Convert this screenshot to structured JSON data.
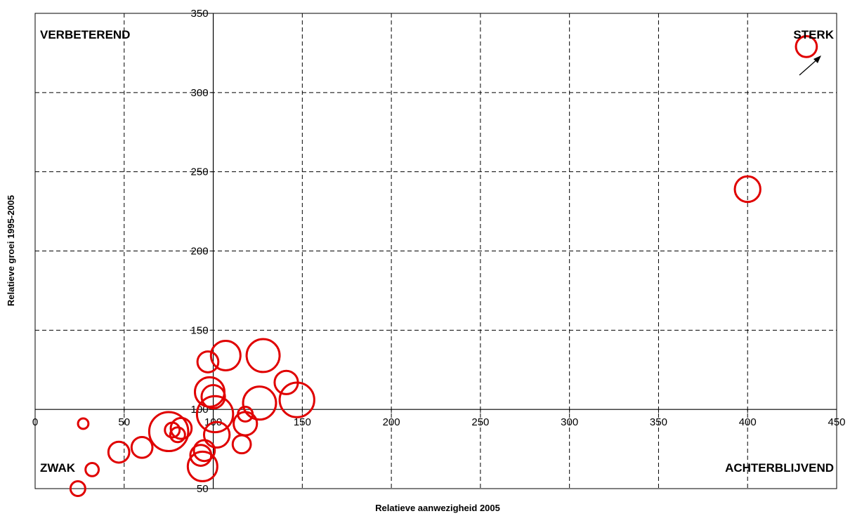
{
  "chart_data": {
    "type": "scatter",
    "title": "",
    "xlabel": "Relatieve aanwezigheid 2005",
    "ylabel": "Relatieve groei 1995-2005",
    "xlim": [
      0,
      450
    ],
    "ylim": [
      50,
      350
    ],
    "x_ticks": [
      0,
      50,
      100,
      150,
      200,
      250,
      300,
      350,
      400,
      450
    ],
    "y_ticks": [
      50,
      100,
      150,
      200,
      250,
      300,
      350
    ],
    "x_axis_crosses_y_at": 100,
    "y_axis_crosses_x_at": 100,
    "grid": true,
    "grid_style": "dashed",
    "marker_color": "#e00000",
    "marker_style": "open-circle",
    "quadrant_labels": {
      "top_left": "VERBETEREND",
      "top_right": "STERK",
      "bottom_left": "ZWAK",
      "bottom_right": "ACHTERBLIJVEND"
    },
    "arrow_direction": "up-right",
    "points": [
      {
        "x": 433,
        "y": 329,
        "size": 2
      },
      {
        "x": 400,
        "y": 239,
        "size": 3
      },
      {
        "x": 27,
        "y": 91,
        "size": 0.5
      },
      {
        "x": 32,
        "y": 62,
        "size": 0.8
      },
      {
        "x": 24,
        "y": 50,
        "size": 1
      },
      {
        "x": 47,
        "y": 73,
        "size": 2
      },
      {
        "x": 60,
        "y": 76,
        "size": 2
      },
      {
        "x": 75,
        "y": 86,
        "size": 7
      },
      {
        "x": 77,
        "y": 87,
        "size": 1
      },
      {
        "x": 80,
        "y": 84,
        "size": 1
      },
      {
        "x": 82,
        "y": 88,
        "size": 2
      },
      {
        "x": 93,
        "y": 71,
        "size": 2
      },
      {
        "x": 95,
        "y": 74,
        "size": 2
      },
      {
        "x": 94,
        "y": 64,
        "size": 4
      },
      {
        "x": 97,
        "y": 130,
        "size": 2
      },
      {
        "x": 98,
        "y": 111,
        "size": 4
      },
      {
        "x": 100,
        "y": 108,
        "size": 2.5
      },
      {
        "x": 101,
        "y": 97,
        "size": 6
      },
      {
        "x": 102,
        "y": 84,
        "size": 3
      },
      {
        "x": 107,
        "y": 134,
        "size": 4
      },
      {
        "x": 116,
        "y": 78,
        "size": 1.5
      },
      {
        "x": 118,
        "y": 97,
        "size": 1
      },
      {
        "x": 118,
        "y": 91,
        "size": 2.5
      },
      {
        "x": 126,
        "y": 104,
        "size": 5
      },
      {
        "x": 128,
        "y": 134,
        "size": 5
      },
      {
        "x": 141,
        "y": 117,
        "size": 2.5
      },
      {
        "x": 147,
        "y": 106,
        "size": 5.5
      }
    ]
  }
}
